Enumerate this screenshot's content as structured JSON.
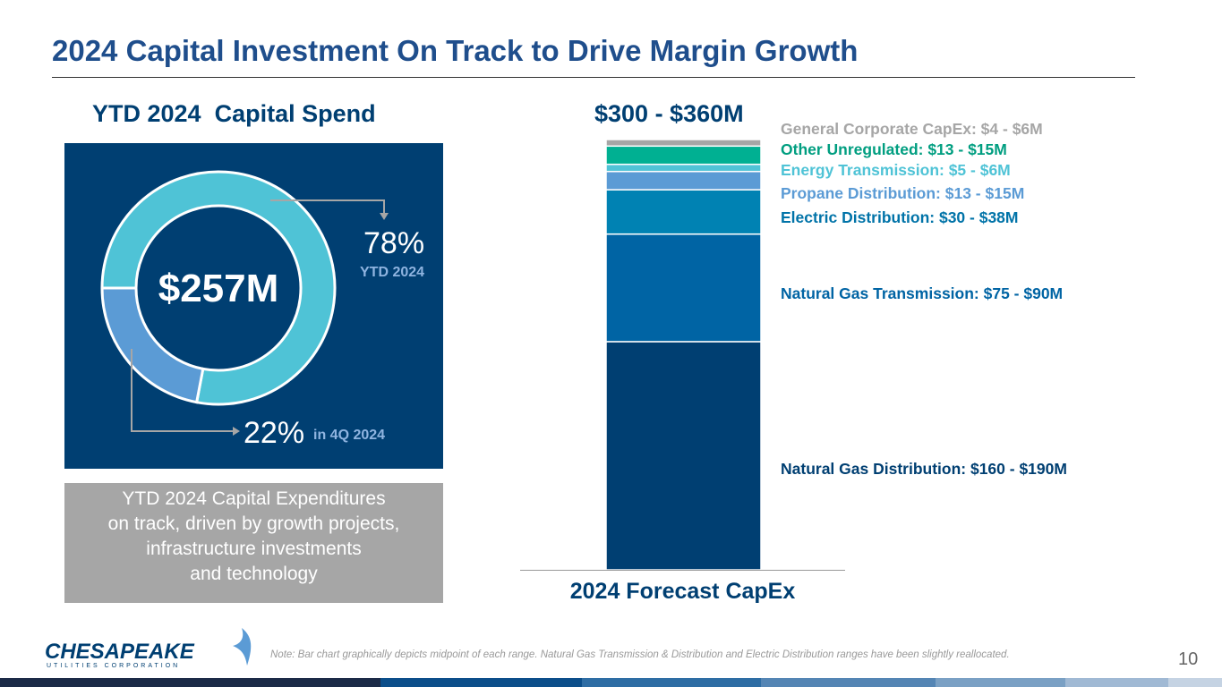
{
  "title": "2024 Capital Investment On Track to Drive Margin Growth",
  "ytd": {
    "heading": "YTD 2024  Capital Spend",
    "total": "$257M",
    "pct_ytd": "78%",
    "ytd_label": "YTD 2024",
    "pct_4q": "22%",
    "q4_label": "in 4Q 2024",
    "summary": [
      "YTD 2024 Capital Expenditures",
      "on track, driven by growth projects,",
      "infrastructure investments",
      "and technology"
    ]
  },
  "chart_data": [
    {
      "type": "pie",
      "title": "YTD 2024 Capital Spend",
      "center_label": "$257M",
      "slices": [
        {
          "name": "YTD 2024",
          "value": 78,
          "color": "#4fc3d6"
        },
        {
          "name": "in 4Q 2024",
          "value": 22,
          "color": "#5b9bd5"
        }
      ]
    },
    {
      "type": "bar",
      "stacked": true,
      "title": "$300 - $360M",
      "categories": [
        "2024 Forecast CapEx"
      ],
      "xlabel": "2024 Forecast CapEx",
      "series": [
        {
          "name": "Natural Gas Distribution",
          "label": "Natural Gas Distribution: $160 - $190M",
          "value": 175,
          "color": "#003f72",
          "label_color": "#003f72"
        },
        {
          "name": "Natural Gas Transmission",
          "label": "Natural Gas Transmission: $75 - $90M",
          "value": 82.5,
          "color": "#0064a4",
          "label_color": "#0064a4"
        },
        {
          "name": "Electric Distribution",
          "label": "Electric Distribution: $30 - $38M",
          "value": 34,
          "color": "#0082b3",
          "label_color": "#0073a8"
        },
        {
          "name": "Propane Distribution",
          "label": "Propane Distribution: $13 - $15M",
          "value": 14,
          "color": "#5b9bd5",
          "label_color": "#5b9bd5"
        },
        {
          "name": "Energy Transmission",
          "label": "Energy Transmission: $5 - $6M",
          "value": 5.5,
          "color": "#4fc3d6",
          "label_color": "#4fc3d6"
        },
        {
          "name": "Other Unregulated",
          "label": "Other Unregulated: $13 - $15M",
          "value": 14,
          "color": "#00b092",
          "label_color": "#009e80"
        },
        {
          "name": "General Corporate CapEx",
          "label": "General Corporate CapEx: $4 - $6M",
          "value": 5,
          "color": "#a6a6a6",
          "label_color": "#a6a6a6"
        }
      ]
    }
  ],
  "footer": {
    "logo": "CHESAPEAKE UTILITIES CORPORATION",
    "note": "Note:  Bar chart graphically depicts midpoint of each range. Natural Gas Transmission & Distribution and Electric Distribution ranges have been slightly reallocated.",
    "page": "10"
  }
}
